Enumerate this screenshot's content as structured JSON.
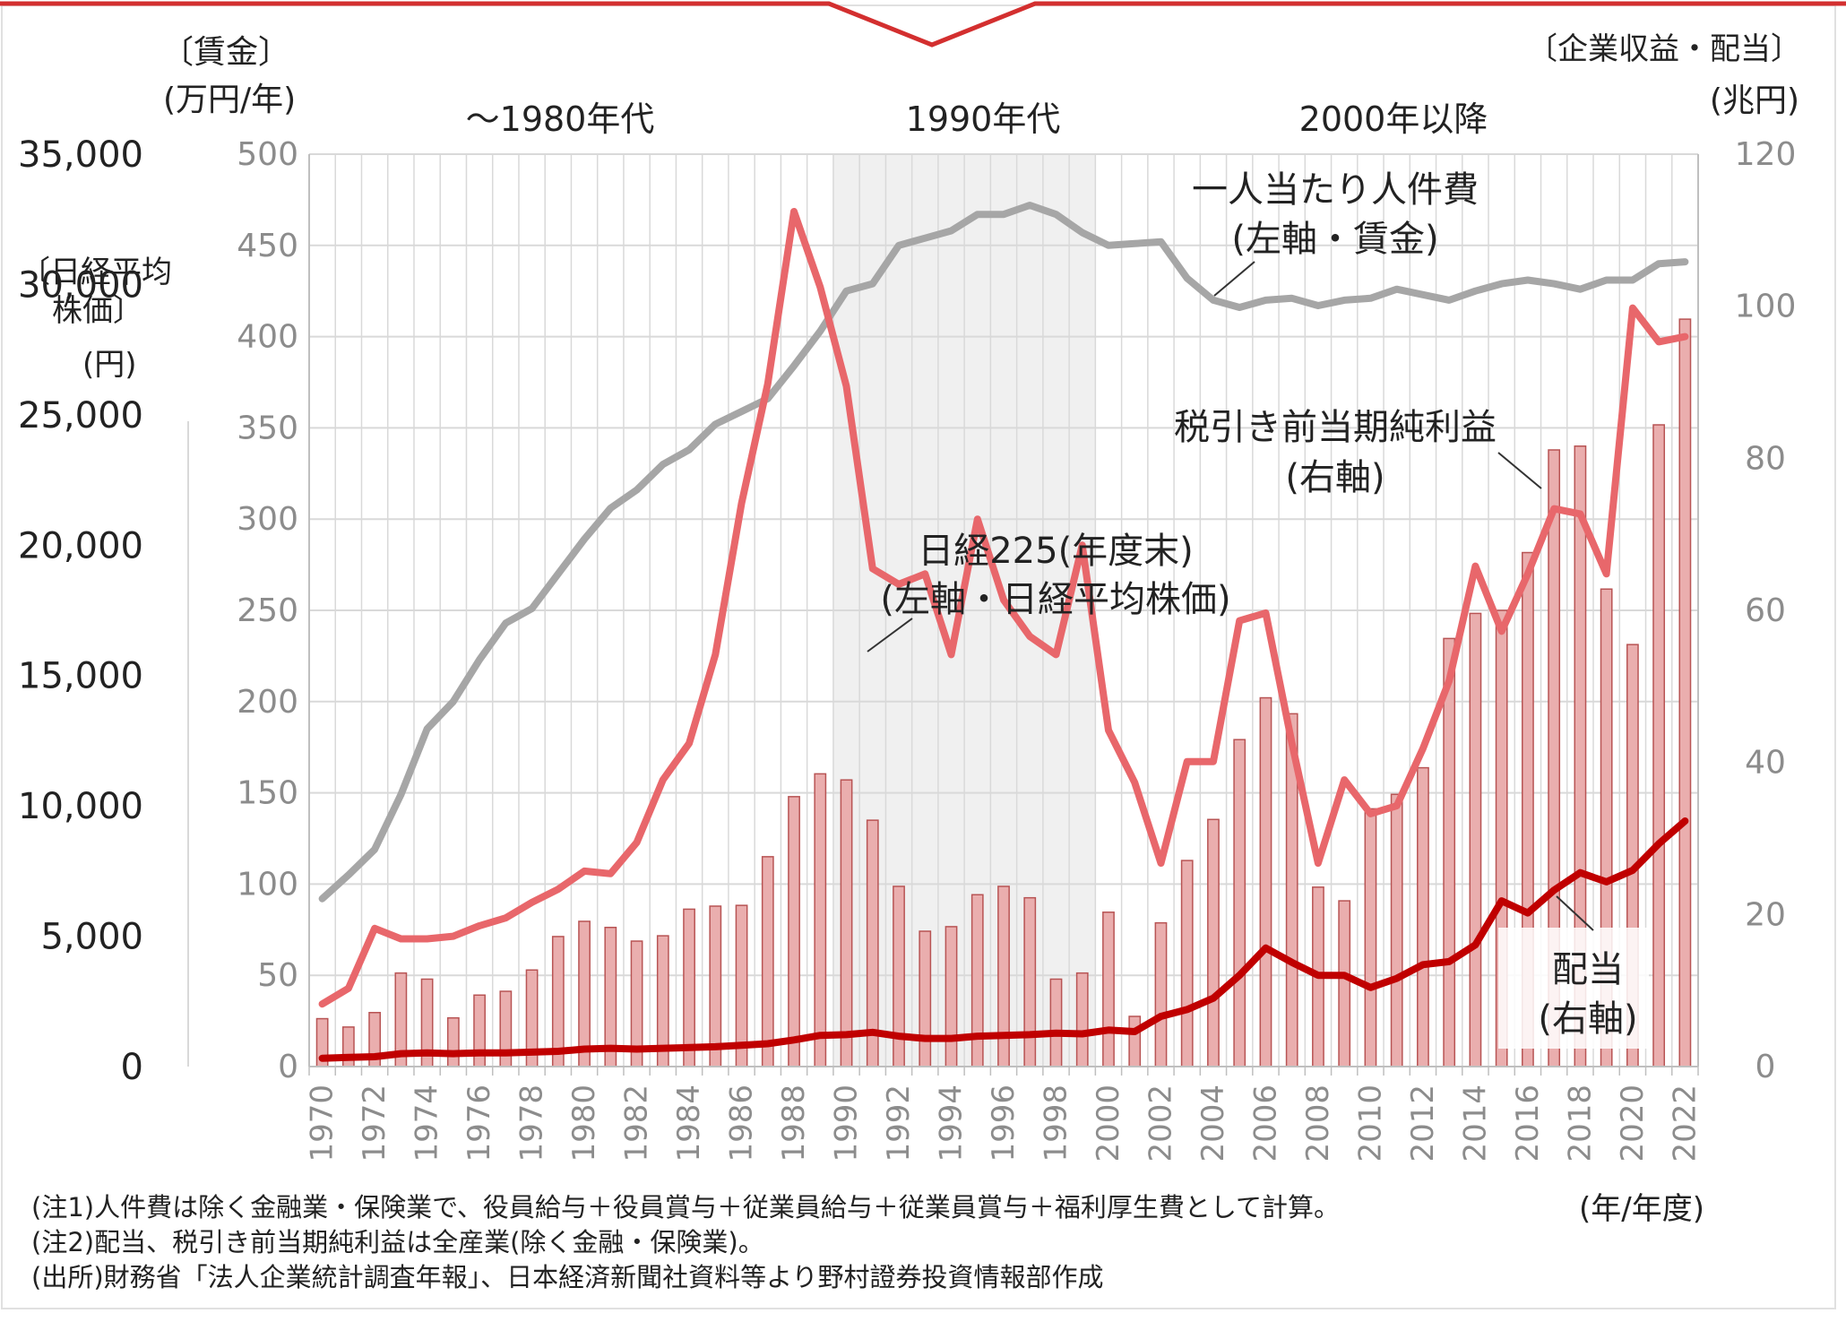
{
  "colors": {
    "wage_line": "#a6a6a6",
    "nikkei_line": "#e8676b",
    "dividend_line": "#c00000",
    "profit_bar_fill": "#eaaeae",
    "profit_bar_stroke": "#b85454",
    "band_fill": "#f0f0f0",
    "frame": "#d32f2f",
    "grid": "#d9d9d9"
  },
  "labels": {
    "left_axis_title_1": "〔賃金〕",
    "left_axis_unit_1": "(万円/年)",
    "left_axis_title_2a": "〔日経平均",
    "left_axis_title_2b": "株価〕",
    "left_axis_unit_2": "(円)",
    "right_axis_title": "〔企業収益・配当〕",
    "right_axis_unit": "(兆円)",
    "era_1": "～1980年代",
    "era_2": "1990年代",
    "era_3": "2000年以降",
    "x_unit": "(年/年度)"
  },
  "annotations": {
    "wage_1": "一人当たり人件費",
    "wage_2": "(左軸・賃金)",
    "nikkei_1": "日経225(年度末)",
    "nikkei_2": "(左軸・日経平均株価)",
    "profit_1": "税引き前当期純利益",
    "profit_2": "(右軸)",
    "dividend_1": "配当",
    "dividend_2": "(右軸)"
  },
  "notes": {
    "note1": "(注1)人件費は除く金融業・保険業で、役員給与＋役員賞与＋従業員給与＋従業員賞与＋福利厚生費として計算。",
    "note2": "(注2)配当、税引き前当期純利益は全産業(除く金融・保険業)。",
    "source": "(出所)財務省「法人企業統計調査年報」、日本経済新聞社資料等より野村證券投資情報部作成"
  },
  "chart_data": {
    "type": "bar",
    "title": "",
    "x": [
      1970,
      1971,
      1972,
      1973,
      1974,
      1975,
      1976,
      1977,
      1978,
      1979,
      1980,
      1981,
      1982,
      1983,
      1984,
      1985,
      1986,
      1987,
      1988,
      1989,
      1990,
      1991,
      1992,
      1993,
      1994,
      1995,
      1996,
      1997,
      1998,
      1999,
      2000,
      2001,
      2002,
      2003,
      2004,
      2005,
      2006,
      2007,
      2008,
      2009,
      2010,
      2011,
      2012,
      2013,
      2014,
      2015,
      2016,
      2017,
      2018,
      2019,
      2020,
      2021,
      2022
    ],
    "x_tick_labels": [
      "1970",
      "1972",
      "1974",
      "1976",
      "1978",
      "1980",
      "1982",
      "1984",
      "1986",
      "1988",
      "1990",
      "1992",
      "1994",
      "1996",
      "1998",
      "2000",
      "2002",
      "2004",
      "2006",
      "2008",
      "2010",
      "2012",
      "2014",
      "2016",
      "2018",
      "2020",
      "2022"
    ],
    "axes": {
      "left_wage": {
        "label": "〔賃金〕(万円/年)",
        "range": [
          0,
          500
        ],
        "ticks": [
          "0",
          "50",
          "100",
          "150",
          "200",
          "250",
          "300",
          "350",
          "400",
          "450",
          "500"
        ]
      },
      "left_nikkei": {
        "label": "〔日経平均株価〕(円)",
        "range": [
          0,
          35000
        ],
        "ticks": [
          "0",
          "5,000",
          "10,000",
          "15,000",
          "20,000",
          "25,000",
          "30,000",
          "35,000"
        ]
      },
      "right": {
        "label": "〔企業収益・配当〕(兆円)",
        "range": [
          0,
          120
        ],
        "ticks": [
          "0",
          "20",
          "40",
          "60",
          "80",
          "100",
          "120"
        ]
      }
    },
    "shaded_band": {
      "from": 1989.5,
      "to": 1999.5,
      "label": "1990年代"
    },
    "grid": true,
    "series": [
      {
        "name": "税引き前当期純利益",
        "type": "bar",
        "axis": "right",
        "values": [
          6.3,
          5.2,
          7.1,
          12.3,
          11.5,
          6.4,
          9.4,
          9.9,
          12.7,
          17.1,
          19.1,
          18.3,
          16.5,
          17.2,
          20.7,
          21.1,
          21.2,
          27.6,
          35.5,
          38.5,
          37.7,
          32.4,
          23.7,
          17.8,
          18.4,
          22.6,
          23.7,
          22.2,
          11.5,
          12.3,
          20.3,
          6.6,
          18.9,
          27.1,
          32.5,
          43.0,
          48.5,
          46.4,
          23.6,
          21.8,
          33.9,
          35.8,
          39.3,
          56.3,
          59.6,
          60.0,
          67.6,
          81.1,
          81.6,
          62.8,
          55.5,
          84.4,
          98.3
        ]
      },
      {
        "name": "一人当たり人件費",
        "type": "line",
        "axis": "left_wage",
        "values": [
          92,
          105,
          119,
          149,
          185,
          200,
          223,
          243,
          251,
          270,
          289,
          306,
          316,
          330,
          338,
          352,
          359,
          366,
          384,
          403,
          425,
          429,
          450,
          454,
          458,
          467,
          467,
          472,
          467,
          457,
          450,
          451,
          452,
          432,
          420,
          416,
          420,
          421,
          417,
          420,
          421,
          426,
          423,
          420,
          425,
          429,
          431,
          429,
          426,
          431,
          431,
          440,
          441
        ]
      },
      {
        "name": "日経225(年度末)",
        "type": "line",
        "axis": "left_nikkei",
        "values": [
          2400,
          3000,
          5300,
          4900,
          4900,
          5000,
          5400,
          5700,
          6300,
          6800,
          7500,
          7400,
          8600,
          11000,
          12400,
          15800,
          21600,
          26200,
          32800,
          29900,
          26100,
          19100,
          18500,
          18900,
          15800,
          21000,
          17900,
          16500,
          15800,
          20000,
          12900,
          10900,
          7800,
          11700,
          11700,
          17100,
          17400,
          12400,
          7800,
          11000,
          9700,
          10000,
          12200,
          14800,
          19200,
          16700,
          18900,
          21400,
          21200,
          18900,
          29100,
          27800,
          28000
        ]
      },
      {
        "name": "配当",
        "type": "line",
        "axis": "right",
        "values": [
          1.1,
          1.2,
          1.3,
          1.7,
          1.8,
          1.7,
          1.8,
          1.8,
          1.9,
          2.0,
          2.3,
          2.4,
          2.3,
          2.4,
          2.5,
          2.6,
          2.8,
          3.0,
          3.5,
          4.1,
          4.2,
          4.5,
          4.0,
          3.7,
          3.7,
          4.0,
          4.1,
          4.2,
          4.4,
          4.3,
          4.8,
          4.6,
          6.6,
          7.5,
          9.0,
          12.0,
          15.6,
          13.7,
          12.0,
          12.0,
          10.4,
          11.6,
          13.4,
          13.8,
          16.0,
          21.8,
          20.2,
          23.2,
          25.5,
          24.3,
          25.8,
          29.3,
          32.3
        ]
      }
    ]
  }
}
